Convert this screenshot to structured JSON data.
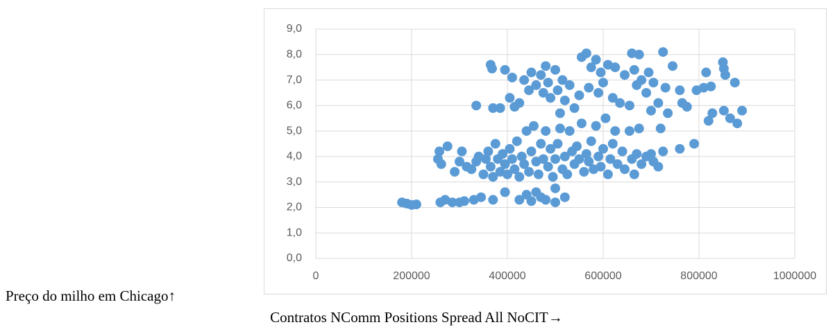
{
  "chart_data": {
    "type": "scatter",
    "x_label": "Contratos NComm Positions Spread All NoCIT→",
    "y_label": "Preço do milho em Chicago↑",
    "color": "#5b9bd5",
    "grid": true,
    "xlim": [
      0,
      1000000
    ],
    "xticks": [
      0,
      200000,
      400000,
      600000,
      800000,
      1000000
    ],
    "ylim": [
      0,
      9
    ],
    "yticks": [
      {
        "value": 0,
        "label": "0,0"
      },
      {
        "value": 1,
        "label": "1,0"
      },
      {
        "value": 2,
        "label": "2,0"
      },
      {
        "value": 3,
        "label": "3,0"
      },
      {
        "value": 4,
        "label": "4,0"
      },
      {
        "value": 5,
        "label": "5,0"
      },
      {
        "value": 6,
        "label": "6,0"
      },
      {
        "value": 7,
        "label": "7,0"
      },
      {
        "value": 8,
        "label": "8,0"
      },
      {
        "value": 9,
        "label": "9,0"
      }
    ],
    "x": [
      180000,
      190000,
      200000,
      210000,
      260000,
      270000,
      285000,
      300000,
      310000,
      330000,
      345000,
      370000,
      395000,
      425000,
      440000,
      450000,
      460000,
      470000,
      480000,
      500000,
      500000,
      520000,
      255000,
      258000,
      262000,
      275000,
      290000,
      300000,
      305000,
      315000,
      325000,
      335000,
      340000,
      350000,
      355000,
      360000,
      365000,
      370000,
      375000,
      380000,
      385000,
      390000,
      395000,
      400000,
      405000,
      410000,
      415000,
      420000,
      425000,
      430000,
      435000,
      440000,
      445000,
      450000,
      455000,
      460000,
      465000,
      470000,
      475000,
      480000,
      485000,
      490000,
      495000,
      500000,
      505000,
      510000,
      515000,
      520000,
      525000,
      530000,
      535000,
      540000,
      545000,
      550000,
      555000,
      560000,
      565000,
      570000,
      575000,
      580000,
      585000,
      590000,
      595000,
      600000,
      605000,
      610000,
      615000,
      620000,
      625000,
      630000,
      640000,
      645000,
      655000,
      660000,
      665000,
      670000,
      675000,
      680000,
      690000,
      700000,
      705000,
      715000,
      720000,
      725000,
      760000,
      790000,
      335000,
      365000,
      368000,
      370000,
      385000,
      395000,
      405000,
      410000,
      415000,
      425000,
      435000,
      445000,
      450000,
      460000,
      470000,
      475000,
      480000,
      485000,
      490000,
      500000,
      505000,
      510000,
      515000,
      520000,
      530000,
      540000,
      550000,
      555000,
      565000,
      570000,
      575000,
      585000,
      590000,
      595000,
      600000,
      610000,
      620000,
      625000,
      635000,
      645000,
      655000,
      660000,
      665000,
      670000,
      675000,
      680000,
      690000,
      695000,
      700000,
      705000,
      715000,
      725000,
      730000,
      735000,
      745000,
      760000,
      765000,
      775000,
      795000,
      810000,
      815000,
      820000,
      825000,
      828000,
      850000,
      852000,
      855000,
      852000,
      865000,
      875000,
      880000,
      890000
    ],
    "y": [
      2.2,
      2.15,
      2.1,
      2.12,
      2.2,
      2.3,
      2.2,
      2.2,
      2.25,
      2.3,
      2.4,
      2.3,
      2.6,
      2.3,
      2.5,
      2.25,
      2.6,
      2.4,
      2.3,
      2.2,
      2.75,
      2.4,
      3.9,
      4.2,
      3.7,
      4.4,
      3.4,
      3.8,
      4.2,
      3.6,
      3.5,
      3.8,
      4.0,
      3.3,
      3.9,
      4.2,
      3.6,
      3.2,
      4.5,
      3.9,
      3.4,
      4.1,
      3.7,
      3.3,
      4.3,
      3.9,
      3.5,
      4.6,
      3.2,
      4.0,
      3.7,
      5.0,
      3.4,
      4.2,
      5.2,
      3.8,
      3.3,
      4.5,
      3.9,
      5.0,
      3.6,
      4.3,
      3.2,
      3.9,
      4.5,
      5.1,
      3.5,
      4.0,
      3.3,
      5.0,
      4.2,
      3.7,
      4.4,
      3.9,
      5.3,
      3.4,
      4.1,
      3.8,
      4.6,
      3.5,
      5.2,
      4.0,
      3.6,
      4.3,
      5.5,
      3.3,
      3.9,
      4.5,
      5.0,
      3.7,
      4.2,
      3.5,
      5.0,
      3.9,
      3.3,
      4.1,
      5.1,
      3.7,
      4.0,
      4.1,
      3.8,
      3.6,
      5.1,
      4.2,
      4.3,
      4.5,
      6.0,
      7.6,
      7.45,
      5.9,
      5.9,
      7.4,
      6.3,
      7.1,
      5.95,
      6.1,
      7.0,
      6.6,
      7.3,
      6.8,
      7.2,
      6.5,
      7.55,
      6.9,
      6.3,
      7.4,
      6.6,
      5.7,
      7.0,
      6.2,
      6.8,
      5.9,
      6.4,
      7.9,
      8.05,
      6.7,
      7.5,
      7.8,
      6.5,
      7.3,
      6.9,
      7.6,
      6.3,
      7.5,
      6.1,
      7.2,
      6.0,
      8.05,
      7.4,
      6.8,
      8.0,
      7.0,
      6.5,
      7.3,
      5.8,
      6.9,
      6.1,
      8.1,
      6.7,
      5.7,
      7.55,
      6.6,
      6.1,
      5.95,
      6.6,
      6.7,
      7.3,
      5.4,
      6.75,
      5.7,
      7.7,
      7.45,
      7.2,
      5.8,
      5.5,
      6.9,
      5.3,
      5.8
    ]
  }
}
